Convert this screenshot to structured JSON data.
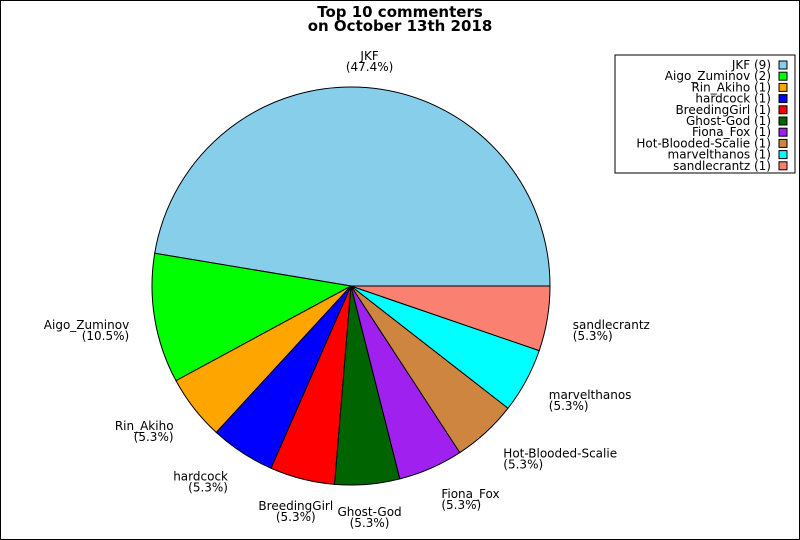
{
  "chart_data": {
    "type": "pie",
    "title_lines": [
      "Top 10 commenters",
      "on October 13th 2018"
    ],
    "start_angle_deg": 0,
    "direction": "counterclockwise",
    "legend_position": "top-right",
    "slices": [
      {
        "label": "JKF",
        "value": 9,
        "percent": "(47.4%)",
        "legend": "JKF (9)",
        "color": "#87CEEB"
      },
      {
        "label": "Aigo_Zuminov",
        "value": 2,
        "percent": "(10.5%)",
        "legend": "Aigo_Zuminov (2)",
        "color": "#00FF00"
      },
      {
        "label": "Rin_Akiho",
        "value": 1,
        "percent": "(5.3%)",
        "legend": "Rin_Akiho (1)",
        "color": "#FFA500"
      },
      {
        "label": "hardcock",
        "value": 1,
        "percent": "(5.3%)",
        "legend": "hardcock (1)",
        "color": "#0000FF"
      },
      {
        "label": "BreedingGirl",
        "value": 1,
        "percent": "(5.3%)",
        "legend": "BreedingGirl (1)",
        "color": "#FF0000"
      },
      {
        "label": "Ghost-God",
        "value": 1,
        "percent": "(5.3%)",
        "legend": "Ghost-God (1)",
        "color": "#006400"
      },
      {
        "label": "Fiona_Fox",
        "value": 1,
        "percent": "(5.3%)",
        "legend": "Fiona_Fox (1)",
        "color": "#A020F0"
      },
      {
        "label": "Hot-Blooded-Scalie",
        "value": 1,
        "percent": "(5.3%)",
        "legend": "Hot-Blooded-Scalie (1)",
        "color": "#CD853F"
      },
      {
        "label": "marvelthanos",
        "value": 1,
        "percent": "(5.3%)",
        "legend": "marvelthanos (1)",
        "color": "#00FFFF"
      },
      {
        "label": "sandlecrantz",
        "value": 1,
        "percent": "(5.3%)",
        "legend": "sandlecrantz (1)",
        "color": "#FA8072"
      }
    ]
  }
}
